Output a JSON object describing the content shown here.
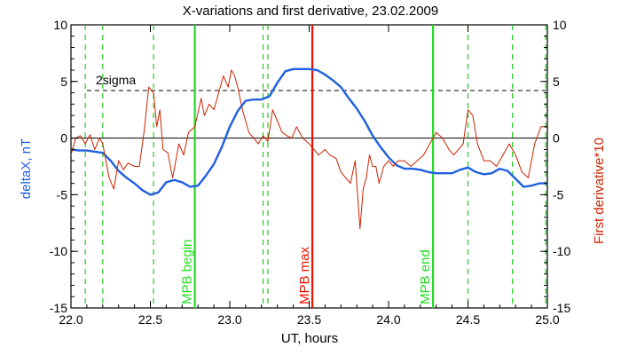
{
  "chart_data": {
    "type": "line",
    "title": "X-variations and first derivative, 23.02.2009",
    "xlabel": "UT, hours",
    "ylabel_left": "deltaX, nT",
    "ylabel_right": "First derivative*10",
    "xlim": [
      22.0,
      25.0
    ],
    "ylim": [
      -15,
      10
    ],
    "x_ticks": [
      "22.0",
      "22.5",
      "23.0",
      "23.5",
      "24.0",
      "24.5",
      "25.0"
    ],
    "y_ticks_left": [
      "10",
      "5",
      "0",
      "-5",
      "-10",
      "-15"
    ],
    "y_ticks_right": [
      "10",
      "5",
      "0",
      "-5",
      "-10",
      "-15"
    ],
    "sigma_level": 4.2,
    "sigma_label": "2sigma",
    "zero_line": 0,
    "colors": {
      "deltaX": "#1f5fe0",
      "derivative": "#cc2200",
      "mpb": "#22dd22",
      "max": "#ee1100",
      "dashed": "#22cc22"
    },
    "dashed_vlines": [
      22.09,
      22.2,
      22.52,
      23.21,
      23.24,
      24.5,
      24.78,
      24.99
    ],
    "markers": [
      {
        "label": "MPB begin",
        "x": 22.78,
        "color": "#22dd22"
      },
      {
        "label": "MPB max",
        "x": 23.52,
        "color": "#ee1100"
      },
      {
        "label": "MPB end",
        "x": 24.28,
        "color": "#22dd22"
      }
    ],
    "series": [
      {
        "key": "deltaX",
        "x": [
          22.0,
          22.05,
          22.1,
          22.15,
          22.2,
          22.25,
          22.3,
          22.35,
          22.4,
          22.45,
          22.5,
          22.55,
          22.6,
          22.65,
          22.7,
          22.75,
          22.8,
          22.85,
          22.9,
          22.95,
          23.0,
          23.05,
          23.1,
          23.15,
          23.2,
          23.25,
          23.3,
          23.35,
          23.4,
          23.45,
          23.5,
          23.55,
          23.6,
          23.65,
          23.7,
          23.75,
          23.8,
          23.85,
          23.9,
          23.95,
          24.0,
          24.05,
          24.1,
          24.15,
          24.2,
          24.25,
          24.3,
          24.35,
          24.4,
          24.45,
          24.5,
          24.55,
          24.6,
          24.65,
          24.7,
          24.75,
          24.8,
          24.85,
          24.9,
          24.95,
          25.0
        ],
        "values": [
          -1.0,
          -1.1,
          -1.1,
          -1.2,
          -1.3,
          -2.0,
          -2.9,
          -3.5,
          -4.0,
          -4.6,
          -5.0,
          -4.8,
          -3.9,
          -3.7,
          -3.9,
          -4.3,
          -4.2,
          -3.3,
          -2.3,
          -0.8,
          1.0,
          2.4,
          3.3,
          3.4,
          3.4,
          3.7,
          4.9,
          5.9,
          6.1,
          6.1,
          6.1,
          6.0,
          5.6,
          5.1,
          4.5,
          3.5,
          2.6,
          1.5,
          0.2,
          -0.8,
          -1.7,
          -2.4,
          -2.7,
          -2.7,
          -2.8,
          -3.0,
          -3.1,
          -3.1,
          -3.1,
          -2.8,
          -2.6,
          -3.0,
          -3.2,
          -3.1,
          -2.7,
          -2.9,
          -3.6,
          -4.3,
          -4.2,
          -4.0,
          -4.0
        ]
      },
      {
        "key": "derivative",
        "x": [
          22.0,
          22.03,
          22.06,
          22.09,
          22.12,
          22.15,
          22.18,
          22.2,
          22.24,
          22.27,
          22.3,
          22.33,
          22.36,
          22.4,
          22.43,
          22.46,
          22.49,
          22.52,
          22.54,
          22.56,
          22.58,
          22.61,
          22.64,
          22.68,
          22.71,
          22.74,
          22.78,
          22.82,
          22.84,
          22.87,
          22.9,
          22.93,
          22.96,
          22.99,
          23.01,
          23.03,
          23.05,
          23.08,
          23.12,
          23.15,
          23.18,
          23.21,
          23.24,
          23.27,
          23.3,
          23.33,
          23.36,
          23.39,
          23.42,
          23.46,
          23.5,
          23.53,
          23.56,
          23.6,
          23.63,
          23.67,
          23.7,
          23.73,
          23.76,
          23.79,
          23.82,
          23.84,
          23.86,
          23.88,
          23.9,
          23.92,
          23.94,
          23.97,
          24.0,
          24.03,
          24.06,
          24.1,
          24.14,
          24.18,
          24.22,
          24.26,
          24.3,
          24.34,
          24.38,
          24.41,
          24.44,
          24.47,
          24.5,
          24.53,
          24.56,
          24.6,
          24.64,
          24.68,
          24.72,
          24.76,
          24.8,
          24.84,
          24.88,
          24.92,
          24.96,
          25.0
        ],
        "values": [
          -1.5,
          0.0,
          0.2,
          -0.5,
          0.3,
          -1.0,
          0.0,
          -0.5,
          -3.5,
          -4.5,
          -2.0,
          -2.8,
          -2.2,
          -2.5,
          -2.5,
          0.5,
          4.5,
          4.0,
          1.0,
          2.5,
          -1.0,
          -1.3,
          -3.5,
          -0.5,
          -1.5,
          0.5,
          1.0,
          3.5,
          2.0,
          3.0,
          2.5,
          4.0,
          5.5,
          4.5,
          6.0,
          5.5,
          4.5,
          2.5,
          0.5,
          0.0,
          -0.5,
          0.2,
          -0.3,
          2.5,
          1.5,
          0.5,
          0.2,
          0.0,
          1.0,
          0.0,
          -0.5,
          -1.0,
          -1.5,
          -1.0,
          -1.5,
          -1.8,
          -3.0,
          -3.5,
          -4.0,
          -2.0,
          -8.0,
          -4.5,
          -3.5,
          -1.5,
          -2.5,
          -2.5,
          -4.0,
          -2.5,
          -2.0,
          -2.5,
          -2.0,
          -2.0,
          -2.5,
          -2.0,
          -1.5,
          -0.5,
          0.5,
          0.0,
          -1.0,
          -1.5,
          -1.0,
          -0.5,
          2.5,
          2.0,
          -0.5,
          -2.0,
          -2.0,
          -2.5,
          -1.5,
          -0.5,
          -1.5,
          -3.0,
          -3.5,
          -0.5,
          1.0,
          1.0
        ]
      }
    ]
  }
}
